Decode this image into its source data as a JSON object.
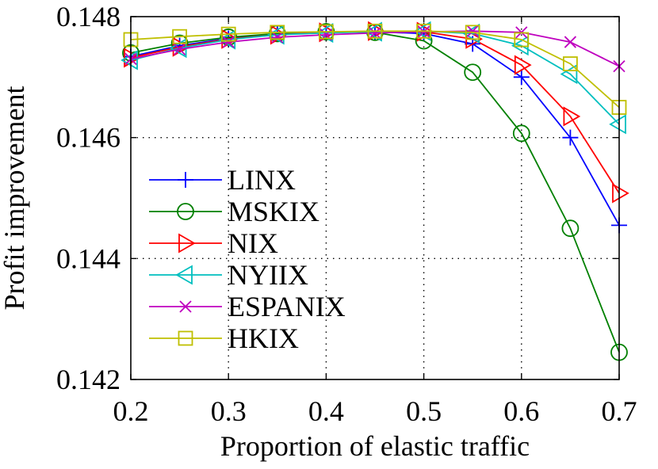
{
  "chart_data": {
    "type": "line",
    "title": "",
    "xlabel": "Proportion of elastic traffic",
    "ylabel": "Profit improvement",
    "xlim": [
      0.2,
      0.7
    ],
    "ylim": [
      0.142,
      0.148
    ],
    "x_ticks": [
      "0.2",
      "0.3",
      "0.4",
      "0.5",
      "0.6",
      "0.7"
    ],
    "y_ticks": [
      "0.142",
      "0.144",
      "0.146",
      "0.148"
    ],
    "grid": true,
    "legend_position": "left",
    "x": [
      0.2,
      0.25,
      0.3,
      0.35,
      0.4,
      0.45,
      0.5,
      0.55,
      0.6,
      0.65,
      0.7
    ],
    "series": [
      {
        "name": "LINX",
        "color": "#0000ff",
        "marker": "plus",
        "values": [
          0.14734,
          0.14752,
          0.14764,
          0.14771,
          0.14774,
          0.14775,
          0.14772,
          0.14755,
          0.147,
          0.146,
          0.14455
        ]
      },
      {
        "name": "MSKIX",
        "color": "#008000",
        "marker": "circle",
        "values": [
          0.1474,
          0.14756,
          0.14766,
          0.14772,
          0.14775,
          0.14774,
          0.1476,
          0.14708,
          0.14607,
          0.1445,
          0.14245
        ]
      },
      {
        "name": "NIX",
        "color": "#ff0000",
        "marker": "triangle-right",
        "values": [
          0.14732,
          0.1475,
          0.14763,
          0.1477,
          0.14774,
          0.14776,
          0.14775,
          0.14763,
          0.1472,
          0.14635,
          0.14508
        ]
      },
      {
        "name": "NYIIX",
        "color": "#00bfbf",
        "marker": "triangle-left",
        "values": [
          0.14728,
          0.14748,
          0.14762,
          0.1477,
          0.14773,
          0.14775,
          0.14776,
          0.14772,
          0.14752,
          0.14705,
          0.14622
        ]
      },
      {
        "name": "ESPANIX",
        "color": "#bf00bf",
        "marker": "x",
        "values": [
          0.1473,
          0.14746,
          0.14758,
          0.14766,
          0.1477,
          0.14773,
          0.14775,
          0.14776,
          0.14774,
          0.14758,
          0.14718
        ]
      },
      {
        "name": "HKIX",
        "color": "#bfbf00",
        "marker": "square",
        "values": [
          0.14762,
          0.14767,
          0.14771,
          0.14774,
          0.14775,
          0.14776,
          0.14776,
          0.14774,
          0.14762,
          0.14722,
          0.1465
        ]
      }
    ]
  }
}
